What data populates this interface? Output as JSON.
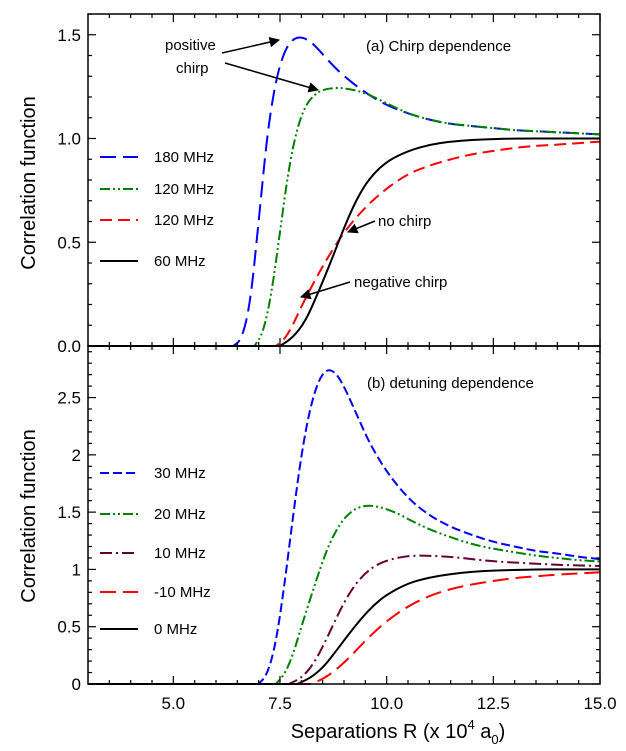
{
  "xlabel": "Separations R (x 10",
  "xlabel_exp": "4",
  "xlabel_unit": " a",
  "xlabel_sub": "0",
  "xlabel_close": ")",
  "chart_data": [
    {
      "type": "line",
      "title": "(a) Chirp dependence",
      "ylabel": "Correlation function",
      "xlim": [
        3.0,
        15.0
      ],
      "ylim": [
        0.0,
        1.6
      ],
      "xticks": [
        "5.0",
        "7.5",
        "10.0",
        "12.5",
        "15.0"
      ],
      "yticks": [
        "0.0",
        "0.5",
        "1.0",
        "1.5"
      ],
      "legend": "left",
      "annotations": [
        "positive",
        "chirp",
        "no chirp",
        "negative chirp"
      ],
      "series": [
        {
          "name": "180 MHz",
          "color": "#0000ff",
          "dash": "long-dash",
          "x": [
            6.4,
            6.6,
            6.8,
            7.0,
            7.2,
            7.4,
            7.6,
            7.8,
            8.0,
            8.2,
            8.4,
            8.7,
            9.0,
            9.5,
            10.0,
            10.5,
            11.0,
            11.5,
            12.0,
            12.5,
            13.0,
            13.5,
            14.0,
            14.5,
            15.0
          ],
          "y": [
            0.0,
            0.03,
            0.2,
            0.6,
            1.02,
            1.28,
            1.42,
            1.48,
            1.49,
            1.47,
            1.43,
            1.36,
            1.3,
            1.22,
            1.16,
            1.12,
            1.09,
            1.07,
            1.06,
            1.05,
            1.04,
            1.035,
            1.03,
            1.025,
            1.02
          ]
        },
        {
          "name": "120 MHz",
          "color": "#008000",
          "dash": "dash-dot-dot",
          "x": [
            6.9,
            7.1,
            7.3,
            7.5,
            7.7,
            7.9,
            8.1,
            8.3,
            8.5,
            8.8,
            9.1,
            9.5,
            10.0,
            10.5,
            11.0,
            11.5,
            12.0,
            12.5,
            13.0,
            13.5,
            14.0,
            14.5,
            15.0
          ],
          "y": [
            0.0,
            0.06,
            0.25,
            0.55,
            0.85,
            1.05,
            1.16,
            1.21,
            1.235,
            1.245,
            1.24,
            1.22,
            1.17,
            1.12,
            1.09,
            1.07,
            1.06,
            1.05,
            1.04,
            1.035,
            1.03,
            1.025,
            1.02
          ]
        },
        {
          "name": "120 MHz",
          "color": "#ff0000",
          "dash": "dash",
          "x": [
            7.4,
            7.6,
            7.8,
            8.0,
            8.3,
            8.6,
            9.0,
            9.5,
            10.0,
            10.5,
            11.0,
            11.5,
            12.0,
            12.5,
            13.0,
            13.5,
            14.0,
            14.5,
            15.0
          ],
          "y": [
            0.0,
            0.03,
            0.1,
            0.19,
            0.31,
            0.42,
            0.55,
            0.67,
            0.76,
            0.83,
            0.87,
            0.9,
            0.925,
            0.94,
            0.955,
            0.965,
            0.97,
            0.978,
            0.985
          ]
        },
        {
          "name": "60 MHz",
          "color": "#000000",
          "dash": "solid",
          "x": [
            7.5,
            7.8,
            8.1,
            8.4,
            8.7,
            9.0,
            9.3,
            9.6,
            10.0,
            10.5,
            11.0,
            11.5,
            12.0,
            12.5,
            13.0,
            14.0,
            15.0
          ],
          "y": [
            0.0,
            0.04,
            0.12,
            0.26,
            0.41,
            0.57,
            0.71,
            0.81,
            0.89,
            0.94,
            0.97,
            0.985,
            0.993,
            0.997,
            1.0,
            1.0,
            1.0
          ]
        }
      ]
    },
    {
      "type": "line",
      "title": "(b) detuning dependence",
      "ylabel": "Correlation function",
      "xlim": [
        3.0,
        15.0
      ],
      "ylim": [
        0.0,
        2.95
      ],
      "xticks": [
        "5.0",
        "7.5",
        "10.0",
        "12.5",
        "15.0"
      ],
      "yticks": [
        "0",
        "0.5",
        "1",
        "1.5",
        "2",
        "2.5"
      ],
      "legend": "left",
      "series": [
        {
          "name": "30 MHz",
          "color": "#0000ff",
          "dash": "short-dash",
          "x": [
            7.0,
            7.2,
            7.4,
            7.6,
            7.8,
            8.0,
            8.2,
            8.4,
            8.6,
            8.8,
            9.0,
            9.3,
            9.6,
            10.0,
            10.5,
            11.0,
            11.5,
            12.0,
            12.5,
            13.0,
            13.5,
            14.0,
            14.5,
            15.0
          ],
          "y": [
            0.0,
            0.08,
            0.35,
            0.85,
            1.45,
            2.0,
            2.4,
            2.65,
            2.75,
            2.72,
            2.6,
            2.35,
            2.1,
            1.85,
            1.62,
            1.47,
            1.37,
            1.3,
            1.24,
            1.2,
            1.16,
            1.14,
            1.11,
            1.09
          ]
        },
        {
          "name": "20 MHz",
          "color": "#008000",
          "dash": "dash-dot-dot",
          "x": [
            7.4,
            7.6,
            7.8,
            8.0,
            8.3,
            8.6,
            8.9,
            9.2,
            9.5,
            9.8,
            10.2,
            10.6,
            11.0,
            11.5,
            12.0,
            12.5,
            13.0,
            13.5,
            14.0,
            14.5,
            15.0
          ],
          "y": [
            0.0,
            0.08,
            0.25,
            0.5,
            0.85,
            1.18,
            1.4,
            1.52,
            1.56,
            1.55,
            1.5,
            1.42,
            1.35,
            1.28,
            1.22,
            1.18,
            1.15,
            1.12,
            1.1,
            1.08,
            1.07
          ]
        },
        {
          "name": "10 MHz",
          "color": "#660033",
          "dash": "dash-dot",
          "x": [
            7.7,
            8.0,
            8.3,
            8.6,
            8.9,
            9.2,
            9.5,
            9.8,
            10.2,
            10.6,
            11.0,
            11.5,
            12.0,
            12.5,
            13.0,
            13.5,
            14.0,
            14.5,
            15.0
          ],
          "y": [
            0.0,
            0.05,
            0.18,
            0.4,
            0.64,
            0.84,
            0.97,
            1.05,
            1.1,
            1.12,
            1.12,
            1.11,
            1.09,
            1.07,
            1.06,
            1.05,
            1.04,
            1.035,
            1.03
          ]
        },
        {
          "name": "-10 MHz",
          "color": "#ff0000",
          "dash": "long-dash",
          "x": [
            8.2,
            8.5,
            8.8,
            9.1,
            9.4,
            9.7,
            10.0,
            10.5,
            11.0,
            11.5,
            12.0,
            12.5,
            13.0,
            13.5,
            14.0,
            14.5,
            15.0
          ],
          "y": [
            0.0,
            0.04,
            0.12,
            0.22,
            0.34,
            0.45,
            0.55,
            0.68,
            0.77,
            0.83,
            0.87,
            0.9,
            0.925,
            0.94,
            0.955,
            0.965,
            0.975
          ]
        },
        {
          "name": "0 MHz",
          "color": "#000000",
          "dash": "solid",
          "x": [
            7.9,
            8.2,
            8.5,
            8.8,
            9.1,
            9.4,
            9.7,
            10.0,
            10.5,
            11.0,
            11.5,
            12.0,
            12.5,
            13.0,
            13.5,
            14.0,
            15.0
          ],
          "y": [
            0.0,
            0.05,
            0.14,
            0.28,
            0.43,
            0.57,
            0.69,
            0.78,
            0.88,
            0.93,
            0.96,
            0.98,
            0.99,
            0.995,
            1.0,
            1.0,
            1.0
          ]
        }
      ]
    }
  ]
}
